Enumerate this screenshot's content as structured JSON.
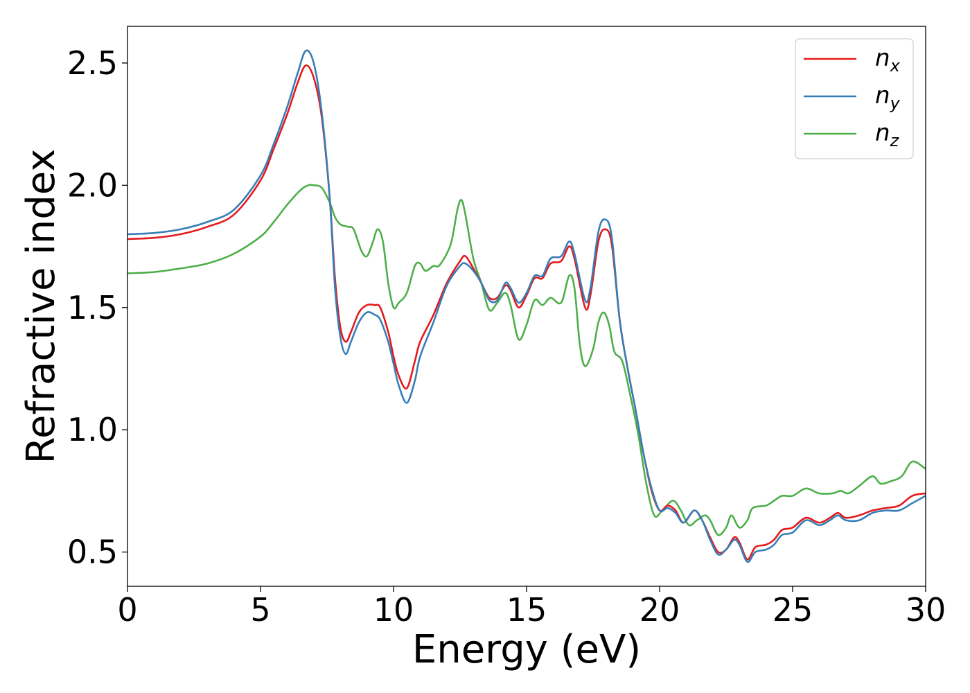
{
  "chart_data": {
    "type": "line",
    "title": "",
    "xlabel": "Energy (eV)",
    "ylabel": "Refractive index",
    "xlim": [
      0,
      30
    ],
    "ylim": [
      0.36,
      2.65
    ],
    "xticks": [
      0,
      5,
      10,
      15,
      20,
      25,
      30
    ],
    "xtick_labels": [
      "0",
      "5",
      "10",
      "15",
      "20",
      "25",
      "30"
    ],
    "yticks": [
      0.5,
      1.0,
      1.5,
      2.0,
      2.5
    ],
    "ytick_labels": [
      "0.5",
      "1.0",
      "1.5",
      "2.0",
      "2.5"
    ],
    "grid": false,
    "legend_position": "top-right",
    "series": [
      {
        "name": "n_x",
        "label_base": "n",
        "label_sub": "x",
        "color": "#e41a1c",
        "points": [
          [
            0,
            1.78
          ],
          [
            1,
            1.785
          ],
          [
            2,
            1.8
          ],
          [
            3,
            1.83
          ],
          [
            4,
            1.88
          ],
          [
            5,
            2.02
          ],
          [
            5.5,
            2.15
          ],
          [
            6,
            2.29
          ],
          [
            6.4,
            2.42
          ],
          [
            6.7,
            2.49
          ],
          [
            7,
            2.44
          ],
          [
            7.3,
            2.28
          ],
          [
            7.6,
            1.95
          ],
          [
            7.8,
            1.62
          ],
          [
            8,
            1.42
          ],
          [
            8.2,
            1.36
          ],
          [
            8.4,
            1.4
          ],
          [
            8.7,
            1.48
          ],
          [
            9,
            1.51
          ],
          [
            9.3,
            1.51
          ],
          [
            9.5,
            1.5
          ],
          [
            9.8,
            1.4
          ],
          [
            10,
            1.3
          ],
          [
            10.2,
            1.22
          ],
          [
            10.5,
            1.17
          ],
          [
            10.8,
            1.28
          ],
          [
            11,
            1.36
          ],
          [
            11.5,
            1.47
          ],
          [
            12,
            1.6
          ],
          [
            12.5,
            1.69
          ],
          [
            12.7,
            1.71
          ],
          [
            13,
            1.66
          ],
          [
            13.3,
            1.6
          ],
          [
            13.6,
            1.54
          ],
          [
            13.9,
            1.54
          ],
          [
            14.2,
            1.59
          ],
          [
            14.4,
            1.57
          ],
          [
            14.7,
            1.5
          ],
          [
            15,
            1.55
          ],
          [
            15.3,
            1.62
          ],
          [
            15.6,
            1.62
          ],
          [
            15.9,
            1.68
          ],
          [
            16.3,
            1.69
          ],
          [
            16.6,
            1.75
          ],
          [
            16.8,
            1.7
          ],
          [
            17.2,
            1.5
          ],
          [
            17.4,
            1.55
          ],
          [
            17.7,
            1.77
          ],
          [
            17.95,
            1.82
          ],
          [
            18.2,
            1.76
          ],
          [
            18.5,
            1.45
          ],
          [
            18.8,
            1.25
          ],
          [
            19.1,
            1.08
          ],
          [
            19.4,
            0.9
          ],
          [
            19.7,
            0.75
          ],
          [
            20,
            0.67
          ],
          [
            20.3,
            0.69
          ],
          [
            20.6,
            0.67
          ],
          [
            20.9,
            0.62
          ],
          [
            21.3,
            0.67
          ],
          [
            21.6,
            0.63
          ],
          [
            21.9,
            0.56
          ],
          [
            22.2,
            0.5
          ],
          [
            22.5,
            0.51
          ],
          [
            22.8,
            0.56
          ],
          [
            23,
            0.54
          ],
          [
            23.3,
            0.47
          ],
          [
            23.6,
            0.52
          ],
          [
            24,
            0.53
          ],
          [
            24.3,
            0.55
          ],
          [
            24.6,
            0.59
          ],
          [
            25,
            0.6
          ],
          [
            25.5,
            0.64
          ],
          [
            26,
            0.62
          ],
          [
            26.4,
            0.64
          ],
          [
            26.7,
            0.66
          ],
          [
            27,
            0.64
          ],
          [
            27.5,
            0.65
          ],
          [
            28,
            0.67
          ],
          [
            28.5,
            0.68
          ],
          [
            29,
            0.69
          ],
          [
            29.5,
            0.73
          ],
          [
            30,
            0.74
          ]
        ]
      },
      {
        "name": "n_y",
        "label_base": "n",
        "label_sub": "y",
        "color": "#377eb8",
        "points": [
          [
            0,
            1.8
          ],
          [
            1,
            1.805
          ],
          [
            2,
            1.82
          ],
          [
            3,
            1.85
          ],
          [
            4,
            1.9
          ],
          [
            5,
            2.04
          ],
          [
            5.5,
            2.17
          ],
          [
            6,
            2.32
          ],
          [
            6.4,
            2.46
          ],
          [
            6.7,
            2.55
          ],
          [
            7,
            2.5
          ],
          [
            7.3,
            2.3
          ],
          [
            7.6,
            1.95
          ],
          [
            7.8,
            1.58
          ],
          [
            8,
            1.38
          ],
          [
            8.2,
            1.31
          ],
          [
            8.4,
            1.36
          ],
          [
            8.7,
            1.44
          ],
          [
            9,
            1.48
          ],
          [
            9.3,
            1.47
          ],
          [
            9.5,
            1.45
          ],
          [
            9.8,
            1.36
          ],
          [
            10,
            1.27
          ],
          [
            10.2,
            1.18
          ],
          [
            10.5,
            1.11
          ],
          [
            10.8,
            1.2
          ],
          [
            11,
            1.3
          ],
          [
            11.5,
            1.44
          ],
          [
            12,
            1.59
          ],
          [
            12.5,
            1.67
          ],
          [
            12.7,
            1.68
          ],
          [
            13,
            1.65
          ],
          [
            13.3,
            1.6
          ],
          [
            13.6,
            1.53
          ],
          [
            13.9,
            1.53
          ],
          [
            14.2,
            1.6
          ],
          [
            14.4,
            1.58
          ],
          [
            14.7,
            1.52
          ],
          [
            15,
            1.56
          ],
          [
            15.3,
            1.63
          ],
          [
            15.6,
            1.63
          ],
          [
            15.9,
            1.7
          ],
          [
            16.3,
            1.71
          ],
          [
            16.6,
            1.77
          ],
          [
            16.8,
            1.72
          ],
          [
            17.2,
            1.53
          ],
          [
            17.4,
            1.58
          ],
          [
            17.7,
            1.81
          ],
          [
            17.95,
            1.86
          ],
          [
            18.2,
            1.79
          ],
          [
            18.5,
            1.45
          ],
          [
            18.8,
            1.25
          ],
          [
            19.1,
            1.08
          ],
          [
            19.4,
            0.9
          ],
          [
            19.7,
            0.76
          ],
          [
            20,
            0.67
          ],
          [
            20.3,
            0.68
          ],
          [
            20.6,
            0.66
          ],
          [
            20.9,
            0.62
          ],
          [
            21.3,
            0.67
          ],
          [
            21.6,
            0.63
          ],
          [
            21.9,
            0.55
          ],
          [
            22.2,
            0.49
          ],
          [
            22.5,
            0.51
          ],
          [
            22.8,
            0.55
          ],
          [
            23,
            0.53
          ],
          [
            23.3,
            0.46
          ],
          [
            23.6,
            0.5
          ],
          [
            24,
            0.51
          ],
          [
            24.3,
            0.53
          ],
          [
            24.6,
            0.57
          ],
          [
            25,
            0.58
          ],
          [
            25.5,
            0.63
          ],
          [
            26,
            0.61
          ],
          [
            26.4,
            0.63
          ],
          [
            26.7,
            0.65
          ],
          [
            27,
            0.63
          ],
          [
            27.5,
            0.63
          ],
          [
            28,
            0.66
          ],
          [
            28.5,
            0.67
          ],
          [
            29,
            0.67
          ],
          [
            29.5,
            0.7
          ],
          [
            30,
            0.73
          ]
        ]
      },
      {
        "name": "n_z",
        "label_base": "n",
        "label_sub": "z",
        "color": "#4daf4a",
        "points": [
          [
            0,
            1.64
          ],
          [
            1,
            1.645
          ],
          [
            2,
            1.66
          ],
          [
            3,
            1.68
          ],
          [
            4,
            1.72
          ],
          [
            5,
            1.79
          ],
          [
            5.5,
            1.85
          ],
          [
            6,
            1.92
          ],
          [
            6.5,
            1.98
          ],
          [
            6.8,
            2.0
          ],
          [
            7,
            2.0
          ],
          [
            7.3,
            1.99
          ],
          [
            7.6,
            1.93
          ],
          [
            7.8,
            1.87
          ],
          [
            8,
            1.84
          ],
          [
            8.3,
            1.83
          ],
          [
            8.5,
            1.82
          ],
          [
            8.8,
            1.73
          ],
          [
            9,
            1.71
          ],
          [
            9.2,
            1.76
          ],
          [
            9.4,
            1.82
          ],
          [
            9.6,
            1.77
          ],
          [
            9.8,
            1.6
          ],
          [
            10,
            1.5
          ],
          [
            10.2,
            1.52
          ],
          [
            10.5,
            1.56
          ],
          [
            10.8,
            1.67
          ],
          [
            11,
            1.68
          ],
          [
            11.2,
            1.65
          ],
          [
            11.5,
            1.67
          ],
          [
            11.7,
            1.67
          ],
          [
            12,
            1.72
          ],
          [
            12.2,
            1.78
          ],
          [
            12.4,
            1.9
          ],
          [
            12.55,
            1.94
          ],
          [
            12.7,
            1.88
          ],
          [
            13,
            1.7
          ],
          [
            13.3,
            1.6
          ],
          [
            13.6,
            1.49
          ],
          [
            13.9,
            1.52
          ],
          [
            14.2,
            1.56
          ],
          [
            14.4,
            1.51
          ],
          [
            14.7,
            1.37
          ],
          [
            15,
            1.43
          ],
          [
            15.3,
            1.53
          ],
          [
            15.6,
            1.51
          ],
          [
            15.9,
            1.54
          ],
          [
            16.3,
            1.52
          ],
          [
            16.6,
            1.63
          ],
          [
            16.8,
            1.58
          ],
          [
            17,
            1.35
          ],
          [
            17.2,
            1.26
          ],
          [
            17.5,
            1.33
          ],
          [
            17.7,
            1.44
          ],
          [
            17.9,
            1.48
          ],
          [
            18.1,
            1.43
          ],
          [
            18.3,
            1.32
          ],
          [
            18.6,
            1.28
          ],
          [
            18.9,
            1.14
          ],
          [
            19.2,
            0.98
          ],
          [
            19.5,
            0.78
          ],
          [
            19.8,
            0.65
          ],
          [
            20.1,
            0.67
          ],
          [
            20.5,
            0.71
          ],
          [
            20.8,
            0.67
          ],
          [
            21.1,
            0.61
          ],
          [
            21.4,
            0.63
          ],
          [
            21.7,
            0.65
          ],
          [
            21.9,
            0.63
          ],
          [
            22.2,
            0.57
          ],
          [
            22.5,
            0.6
          ],
          [
            22.7,
            0.65
          ],
          [
            23,
            0.6
          ],
          [
            23.3,
            0.63
          ],
          [
            23.5,
            0.68
          ],
          [
            24,
            0.69
          ],
          [
            24.3,
            0.71
          ],
          [
            24.6,
            0.73
          ],
          [
            25,
            0.73
          ],
          [
            25.5,
            0.76
          ],
          [
            26,
            0.74
          ],
          [
            26.5,
            0.74
          ],
          [
            26.8,
            0.75
          ],
          [
            27.1,
            0.74
          ],
          [
            27.5,
            0.77
          ],
          [
            28,
            0.81
          ],
          [
            28.3,
            0.78
          ],
          [
            28.7,
            0.79
          ],
          [
            29.1,
            0.81
          ],
          [
            29.5,
            0.87
          ],
          [
            30,
            0.84
          ]
        ]
      }
    ]
  }
}
